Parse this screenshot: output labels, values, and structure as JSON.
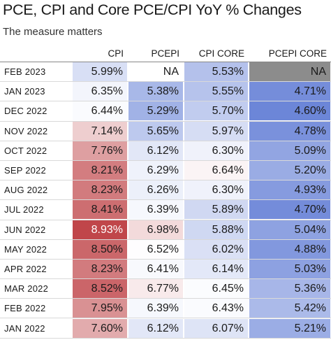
{
  "title": "PCE, CPI and Core PCE/CPI YoY % Changes",
  "subtitle": "The measure matters",
  "chart_data": {
    "type": "table",
    "columns": [
      "",
      "CPI",
      "PCEPI",
      "CPI CORE",
      "PCEPI CORE"
    ],
    "rows": [
      {
        "date": "FEB 2023",
        "cpi": "5.99%",
        "pcepi": "NA",
        "cpi_core": "5.53%",
        "pcepi_core": "NA"
      },
      {
        "date": "JAN 2023",
        "cpi": "6.35%",
        "pcepi": "5.38%",
        "cpi_core": "5.55%",
        "pcepi_core": "4.71%"
      },
      {
        "date": "DEC 2022",
        "cpi": "6.44%",
        "pcepi": "5.29%",
        "cpi_core": "5.70%",
        "pcepi_core": "4.60%"
      },
      {
        "date": "NOV 2022",
        "cpi": "7.14%",
        "pcepi": "5.65%",
        "cpi_core": "5.97%",
        "pcepi_core": "4.78%"
      },
      {
        "date": "OCT 2022",
        "cpi": "7.76%",
        "pcepi": "6.12%",
        "cpi_core": "6.30%",
        "pcepi_core": "5.09%"
      },
      {
        "date": "SEP 2022",
        "cpi": "8.21%",
        "pcepi": "6.29%",
        "cpi_core": "6.64%",
        "pcepi_core": "5.20%"
      },
      {
        "date": "AUG 2022",
        "cpi": "8.23%",
        "pcepi": "6.26%",
        "cpi_core": "6.30%",
        "pcepi_core": "4.93%"
      },
      {
        "date": "JUL 2022",
        "cpi": "8.41%",
        "pcepi": "6.39%",
        "cpi_core": "5.89%",
        "pcepi_core": "4.70%"
      },
      {
        "date": "JUN 2022",
        "cpi": "8.93%",
        "pcepi": "6.98%",
        "cpi_core": "5.88%",
        "pcepi_core": "5.04%"
      },
      {
        "date": "MAY 2022",
        "cpi": "8.50%",
        "pcepi": "6.52%",
        "cpi_core": "6.02%",
        "pcepi_core": "4.88%"
      },
      {
        "date": "APR 2022",
        "cpi": "8.23%",
        "pcepi": "6.41%",
        "cpi_core": "6.14%",
        "pcepi_core": "5.03%"
      },
      {
        "date": "MAR 2022",
        "cpi": "8.52%",
        "pcepi": "6.77%",
        "cpi_core": "6.45%",
        "pcepi_core": "5.36%"
      },
      {
        "date": "FEB 2022",
        "cpi": "7.95%",
        "pcepi": "6.39%",
        "cpi_core": "6.43%",
        "pcepi_core": "5.42%"
      },
      {
        "date": "JAN 2022",
        "cpi": "7.60%",
        "pcepi": "6.12%",
        "cpi_core": "6.07%",
        "pcepi_core": "5.21%"
      }
    ]
  },
  "colors": {
    "high": "#c0464a",
    "mid": "#ffffff",
    "low": "#6c86d8",
    "na": "#8c8c8c",
    "text_dark": "#1a1a1a",
    "text_light": "#ffffff"
  }
}
